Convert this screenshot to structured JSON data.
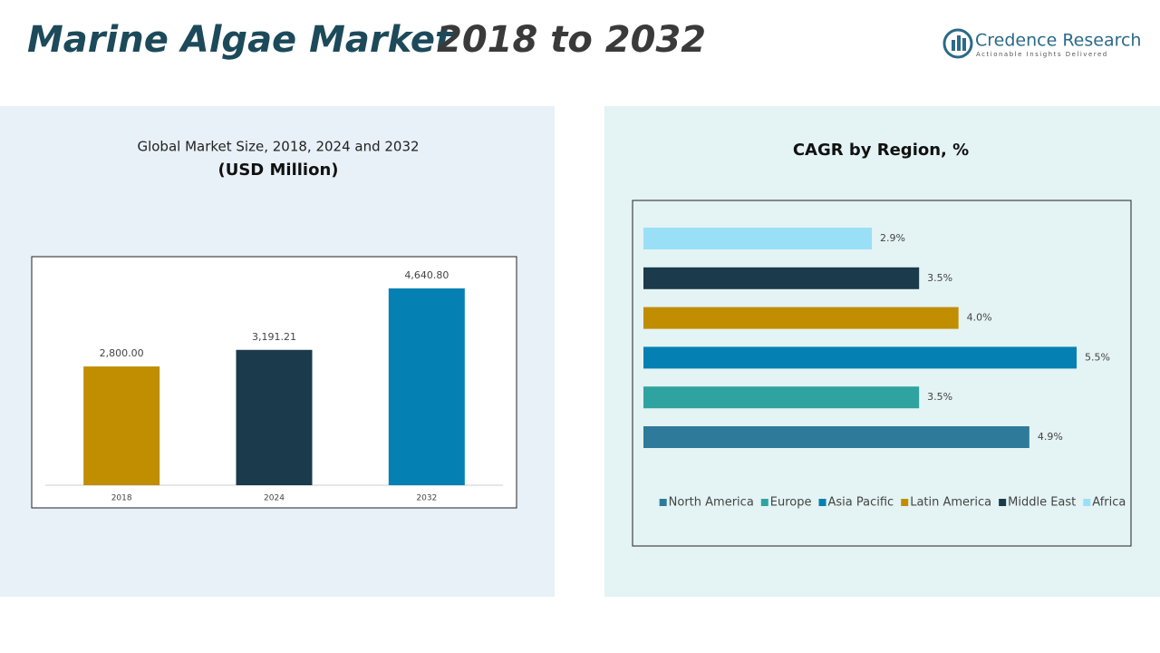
{
  "header": {
    "title_main": "Marine Algae Market",
    "title_years": "2018 to 2032",
    "logo_name": "Credence Research",
    "logo_tagline": "Actionable Insights Delivered"
  },
  "chart_data": [
    {
      "type": "bar",
      "title": "Global Market Size, 2018, 2024 and 2032",
      "subtitle": "(USD Million)",
      "categories": [
        "2018",
        "2024",
        "2032"
      ],
      "values": [
        2800,
        3191.21,
        4640.8
      ],
      "value_labels": [
        "2,800.00",
        "3,191.21",
        "4,640.80"
      ],
      "colors": [
        "#c08e00",
        "#1b3a4b",
        "#0580b3"
      ]
    },
    {
      "type": "bar",
      "orientation": "horizontal",
      "title": "CAGR by Region, %",
      "categories": [
        "North America",
        "Europe",
        "Asia Pacific",
        "Latin America",
        "Middle East",
        "Africa"
      ],
      "values": [
        4.9,
        3.5,
        5.5,
        4.0,
        3.5,
        2.9
      ],
      "value_labels": [
        "4.9%",
        "3.5%",
        "5.5%",
        "4.0%",
        "3.5%",
        "2.9%"
      ],
      "colors": [
        "#2e7a9a",
        "#2fa3a0",
        "#0580b3",
        "#c08e00",
        "#1b3a4b",
        "#99e0f7"
      ],
      "legend": "bottom"
    }
  ]
}
